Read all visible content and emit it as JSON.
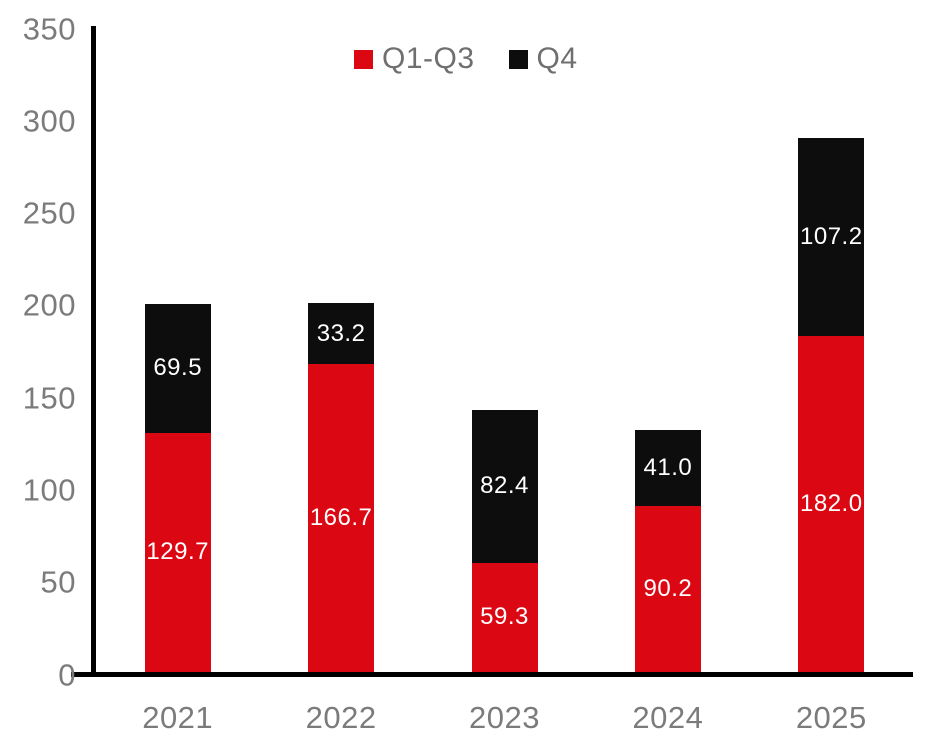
{
  "chart_data": {
    "type": "bar",
    "stacked": true,
    "title": "",
    "xlabel": "",
    "ylabel": "",
    "categories": [
      "2021",
      "2022",
      "2023",
      "2024",
      "2025"
    ],
    "series": [
      {
        "name": "Q1-Q3",
        "color": "#DB0814",
        "values": [
          129.7,
          166.7,
          59.3,
          90.2,
          182.0
        ],
        "value_labels": [
          "129.7",
          "166.7",
          "59.3",
          "90.2",
          "182.0"
        ]
      },
      {
        "name": "Q4",
        "color": "#0D0D0D",
        "values": [
          69.5,
          33.2,
          82.4,
          41.0,
          107.2
        ],
        "value_labels": [
          "69.5",
          "33.2",
          "82.4",
          "41.0",
          "107.2"
        ]
      }
    ],
    "ylim": [
      0,
      350
    ],
    "yticks": [
      "350",
      "300",
      "250",
      "200",
      "150",
      "100",
      "50",
      "0"
    ],
    "ytick_values": [
      350,
      300,
      250,
      200,
      150,
      100,
      50,
      0
    ],
    "grid": false,
    "legend_position": "top-center",
    "data_labels": true,
    "data_label_color": "#FFFFFF",
    "axis_color": "#000000",
    "tick_label_color": "#7B7B7B",
    "legend_text_color": "#6F6F6F",
    "background_color": "#FFFFFF"
  }
}
